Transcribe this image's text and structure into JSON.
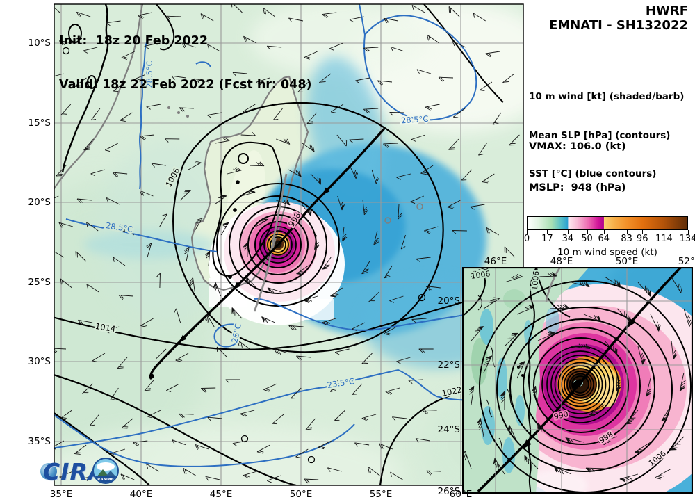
{
  "header": {
    "model": "HWRF",
    "storm_id": "EMNATI - SH132022"
  },
  "title_overlay": {
    "init": "Init:  18z 20 Feb 2022",
    "valid": "Valid: 18z 22 Feb 2022 (Fcst hr: 048)"
  },
  "legend": {
    "line1": "10 m wind [kt] (shaded/barb)",
    "line2": "Mean SLP [hPa] (contours)",
    "line3": "SST [°C] (blue contours)",
    "vmax": "VMAX: 106.0 (kt)",
    "mslp": "MSLP:  948 (hPa)"
  },
  "colorbar": {
    "title": "10 m wind speed (kt)",
    "ticks": [
      "0",
      "17",
      "34",
      "50",
      "64",
      "83",
      "96",
      "114",
      "134"
    ]
  },
  "main_map": {
    "x_ticks": [
      "35°E",
      "40°E",
      "45°E",
      "50°E",
      "55°E",
      "60°E"
    ],
    "y_ticks": [
      "10°S",
      "15°S",
      "20°S",
      "25°S",
      "30°S",
      "35°S"
    ],
    "labels": {
      "slp1": "1006",
      "slp2": "998",
      "slp3": "1014",
      "slp4": "1022",
      "sst1": "28.5°C",
      "sst2": "28.5°C",
      "sst3": "28.5°C",
      "sst4": "26°C",
      "sst5": "23.5°C"
    }
  },
  "inset_map": {
    "x_ticks": [
      "46°E",
      "48°E",
      "50°E",
      "52°E"
    ],
    "y_ticks": [
      "20°S",
      "22°S",
      "24°S",
      "26°S"
    ],
    "labels": {
      "slp1": "1006",
      "slp2": "1006",
      "slp3": "990",
      "slp4": "998",
      "slp5": "1006"
    }
  },
  "logos": {
    "cira": "CIRA",
    "rammb": "RAMMB"
  },
  "chart_data": {
    "type": "heatmap",
    "title": "HWRF EMNATI - SH132022",
    "subtitle": "Init: 18z 20 Feb 2022, Valid: 18z 22 Feb 2022 (Fcst hr: 048)",
    "fields": [
      {
        "name": "10 m wind",
        "units": "kt",
        "style": "shaded/barb"
      },
      {
        "name": "Mean SLP",
        "units": "hPa",
        "style": "contours"
      },
      {
        "name": "SST",
        "units": "°C",
        "style": "blue contours"
      }
    ],
    "storm": {
      "name": "EMNATI",
      "id": "SH132022",
      "vmax_kt": 106.0,
      "mslp_hpa": 948
    },
    "storm_center_approx": {
      "lon_e": 48.6,
      "lat_s": 22.6
    },
    "colorbar": {
      "label": "10 m wind speed (kt)",
      "ticks": [
        0,
        17,
        34,
        50,
        64,
        83,
        96,
        114,
        134
      ],
      "range": [
        0,
        134
      ],
      "colors": [
        "#ffffff",
        "#b7e4bd",
        "#2ea2d2",
        "#fdeaf1",
        "#f173b4",
        "#b00590",
        "#fbd173",
        "#f2912a",
        "#a8470a",
        "#5e2c08"
      ]
    },
    "main_panel": {
      "lon_ticks_e": [
        35,
        40,
        45,
        50,
        55,
        60
      ],
      "lat_ticks_s": [
        10,
        15,
        20,
        25,
        30,
        35
      ],
      "slp_contour_labels_hpa": [
        1006,
        998,
        1014,
        1022
      ],
      "sst_contour_labels_c": [
        28.5,
        28.5,
        28.5,
        26,
        23.5
      ],
      "grid": true
    },
    "inset_panel": {
      "lon_ticks_e": [
        46,
        48,
        50,
        52
      ],
      "lat_ticks_s": [
        20,
        22,
        24,
        26
      ],
      "slp_contour_labels_hpa": [
        1006,
        1006,
        990,
        998,
        1006
      ],
      "grid": true
    }
  }
}
